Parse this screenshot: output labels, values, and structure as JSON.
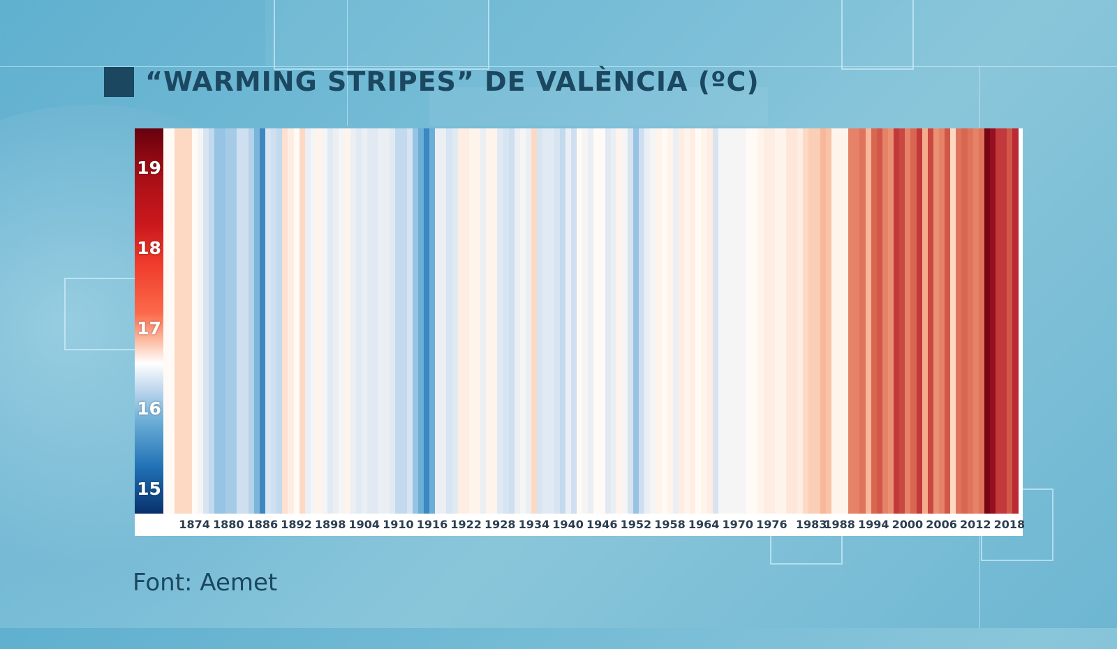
{
  "title": "“WARMING STRIPES” DE VALÈNCIA (ºC)",
  "source": "Font: Aemet",
  "colors": {
    "title": "#1b4760",
    "background": "#6db6d2",
    "axis_text": "#2c3e50"
  },
  "chart_data": {
    "type": "heatmap",
    "title": "“WARMING STRIPES” DE VALÈNCIA (ºC)",
    "subtitle": "",
    "xlabel": "",
    "ylabel": "ºC",
    "colorbar": {
      "ticks": [
        "19",
        "18",
        "17",
        "16",
        "15"
      ],
      "range": [
        14.7,
        19.5
      ],
      "colormap": "RdBu_r",
      "position": "left"
    },
    "x_tick_labels": [
      "1874",
      "1880",
      "1886",
      "1892",
      "1898",
      "1904",
      "1910",
      "1916",
      "1922",
      "1928",
      "1934",
      "1940",
      "1946",
      "1952",
      "1958",
      "1964",
      "1970",
      "1976",
      "1983",
      "1988",
      "1994",
      "2000",
      "2006",
      "2012",
      "2018"
    ],
    "x_range": [
      1869,
      2019
    ],
    "years_start": 1869,
    "values": [
      17.1,
      17.1,
      17.6,
      17.6,
      17.6,
      17.1,
      17.0,
      16.7,
      16.5,
      16.2,
      16.2,
      16.3,
      16.3,
      16.6,
      16.6,
      16.4,
      16.0,
      15.5,
      16.7,
      16.6,
      16.5,
      17.5,
      17.3,
      17.1,
      17.6,
      16.9,
      17.0,
      17.2,
      17.0,
      16.8,
      16.9,
      17.0,
      17.2,
      16.9,
      16.8,
      16.9,
      16.8,
      16.8,
      16.9,
      16.9,
      16.8,
      16.5,
      16.5,
      16.7,
      16.2,
      15.9,
      15.5,
      15.9,
      16.9,
      16.9,
      16.7,
      16.8,
      17.3,
      17.3,
      17.2,
      17.2,
      16.9,
      17.2,
      17.2,
      16.8,
      16.7,
      16.6,
      16.9,
      17.0,
      16.9,
      17.6,
      16.7,
      16.8,
      16.8,
      16.7,
      16.5,
      16.9,
      16.6,
      17.1,
      17.0,
      16.9,
      17.1,
      17.1,
      16.8,
      16.9,
      17.2,
      17.0,
      16.7,
      16.2,
      16.6,
      16.9,
      17.0,
      17.2,
      17.1,
      17.2,
      16.9,
      17.3,
      17.2,
      17.3,
      17.1,
      17.2,
      17.3,
      16.7,
      17.0,
      17.0,
      17.0,
      17.0,
      17.0,
      17.1,
      17.1,
      17.2,
      17.3,
      17.3,
      17.2,
      17.2,
      17.4,
      17.4,
      17.3,
      17.6,
      17.7,
      17.7,
      17.9,
      17.8,
      17.2,
      17.2,
      17.2,
      18.3,
      18.3,
      18.4,
      17.9,
      18.5,
      18.6,
      18.3,
      18.2,
      18.8,
      18.7,
      18.3,
      18.5,
      18.8,
      18.0,
      18.7,
      18.2,
      18.3,
      18.6,
      17.6,
      18.4,
      18.5,
      18.4,
      18.3,
      18.4,
      19.4,
      19.2,
      18.8,
      18.8,
      18.6,
      18.9
    ]
  }
}
